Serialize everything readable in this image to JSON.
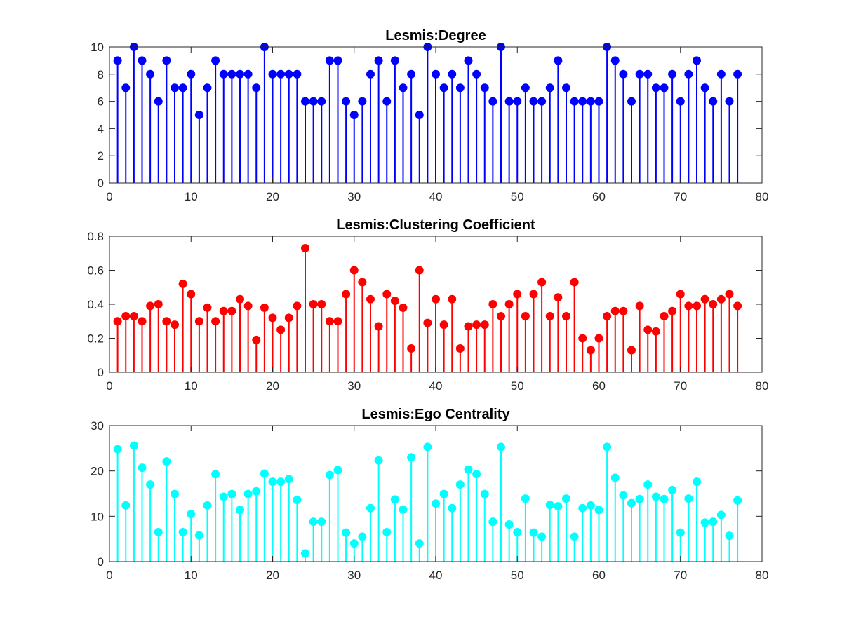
{
  "chart_data": [
    {
      "type": "stem",
      "title": "Lesmis:Degree",
      "xlabel": "",
      "ylabel": "",
      "xlim": [
        0,
        80
      ],
      "ylim": [
        0,
        10
      ],
      "xticks": [
        0,
        10,
        20,
        30,
        40,
        50,
        60,
        70,
        80
      ],
      "yticks": [
        0,
        2,
        4,
        6,
        8,
        10
      ],
      "color": "#0000ff",
      "grid": false,
      "x": [
        1,
        2,
        3,
        4,
        5,
        6,
        7,
        8,
        9,
        10,
        11,
        12,
        13,
        14,
        15,
        16,
        17,
        18,
        19,
        20,
        21,
        22,
        23,
        24,
        25,
        26,
        27,
        28,
        29,
        30,
        31,
        32,
        33,
        34,
        35,
        36,
        37,
        38,
        39,
        40,
        41,
        42,
        43,
        44,
        45,
        46,
        47,
        48,
        49,
        50,
        51,
        52,
        53,
        54,
        55,
        56,
        57,
        58,
        59,
        60,
        61,
        62,
        63,
        64,
        65,
        66,
        67,
        68,
        69,
        70,
        71,
        72,
        73,
        74,
        75,
        76,
        77
      ],
      "values": [
        9,
        7,
        10,
        9,
        8,
        6,
        9,
        7,
        7,
        8,
        5,
        7,
        9,
        8,
        8,
        8,
        8,
        7,
        10,
        8,
        8,
        8,
        8,
        6,
        6,
        6,
        9,
        9,
        6,
        5,
        6,
        8,
        9,
        6,
        9,
        7,
        8,
        5,
        10,
        8,
        7,
        8,
        7,
        9,
        8,
        7,
        6,
        10,
        6,
        6,
        7,
        6,
        6,
        7,
        9,
        7,
        6,
        6,
        6,
        6,
        10,
        9,
        8,
        6,
        8,
        8,
        7,
        7,
        8,
        6,
        8,
        9,
        7,
        6,
        8,
        6,
        8
      ]
    },
    {
      "type": "stem",
      "title": "Lesmis:Clustering Coefficient",
      "xlabel": "",
      "ylabel": "",
      "xlim": [
        0,
        80
      ],
      "ylim": [
        0,
        0.8
      ],
      "xticks": [
        0,
        10,
        20,
        30,
        40,
        50,
        60,
        70,
        80
      ],
      "yticks": [
        0,
        0.2,
        0.4,
        0.6,
        0.8
      ],
      "color": "#ff0000",
      "grid": false,
      "x": [
        1,
        2,
        3,
        4,
        5,
        6,
        7,
        8,
        9,
        10,
        11,
        12,
        13,
        14,
        15,
        16,
        17,
        18,
        19,
        20,
        21,
        22,
        23,
        24,
        25,
        26,
        27,
        28,
        29,
        30,
        31,
        32,
        33,
        34,
        35,
        36,
        37,
        38,
        39,
        40,
        41,
        42,
        43,
        44,
        45,
        46,
        47,
        48,
        49,
        50,
        51,
        52,
        53,
        54,
        55,
        56,
        57,
        58,
        59,
        60,
        61,
        62,
        63,
        64,
        65,
        66,
        67,
        68,
        69,
        70,
        71,
        72,
        73,
        74,
        75,
        76,
        77
      ],
      "values": [
        0.3,
        0.33,
        0.33,
        0.3,
        0.39,
        0.4,
        0.3,
        0.28,
        0.52,
        0.46,
        0.3,
        0.38,
        0.3,
        0.36,
        0.36,
        0.43,
        0.39,
        0.19,
        0.38,
        0.32,
        0.25,
        0.32,
        0.39,
        0.73,
        0.4,
        0.4,
        0.3,
        0.3,
        0.46,
        0.6,
        0.53,
        0.43,
        0.27,
        0.46,
        0.42,
        0.38,
        0.14,
        0.6,
        0.29,
        0.43,
        0.28,
        0.43,
        0.14,
        0.27,
        0.28,
        0.28,
        0.4,
        0.33,
        0.4,
        0.46,
        0.33,
        0.46,
        0.53,
        0.33,
        0.44,
        0.33,
        0.53,
        0.2,
        0.13,
        0.2,
        0.33,
        0.36,
        0.36,
        0.13,
        0.39,
        0.25,
        0.24,
        0.33,
        0.36,
        0.46,
        0.39,
        0.39,
        0.43,
        0.4,
        0.43,
        0.46,
        0.39
      ]
    },
    {
      "type": "stem",
      "title": "Lesmis:Ego Centrality",
      "xlabel": "",
      "ylabel": "",
      "xlim": [
        0,
        80
      ],
      "ylim": [
        0,
        30
      ],
      "xticks": [
        0,
        10,
        20,
        30,
        40,
        50,
        60,
        70,
        80
      ],
      "yticks": [
        0,
        10,
        20,
        30
      ],
      "color": "#00ffff",
      "grid": false,
      "x": [
        1,
        2,
        3,
        4,
        5,
        6,
        7,
        8,
        9,
        10,
        11,
        12,
        13,
        14,
        15,
        16,
        17,
        18,
        19,
        20,
        21,
        22,
        23,
        24,
        25,
        26,
        27,
        28,
        29,
        30,
        31,
        32,
        33,
        34,
        35,
        36,
        37,
        38,
        39,
        40,
        41,
        42,
        43,
        44,
        45,
        46,
        47,
        48,
        49,
        50,
        51,
        52,
        53,
        54,
        55,
        56,
        57,
        58,
        59,
        60,
        61,
        62,
        63,
        64,
        65,
        66,
        67,
        68,
        69,
        70,
        71,
        72,
        73,
        74,
        75,
        76,
        77
      ],
      "values": [
        24.8,
        12.4,
        25.6,
        20.7,
        17.0,
        6.5,
        22.1,
        14.9,
        6.5,
        10.5,
        5.8,
        12.4,
        19.3,
        14.3,
        14.9,
        11.4,
        14.9,
        15.5,
        19.4,
        17.6,
        17.6,
        18.2,
        13.6,
        1.8,
        8.8,
        8.8,
        19.1,
        20.2,
        6.4,
        4.0,
        5.5,
        11.8,
        22.3,
        6.5,
        13.7,
        11.5,
        23.0,
        4.0,
        25.3,
        12.8,
        14.9,
        11.8,
        17.0,
        20.3,
        19.3,
        14.9,
        8.8,
        25.3,
        8.2,
        6.5,
        13.9,
        6.4,
        5.5,
        12.5,
        12.2,
        13.9,
        5.5,
        11.8,
        12.4,
        11.4,
        25.3,
        18.5,
        14.6,
        12.9,
        13.8,
        17.0,
        14.3,
        13.8,
        15.8,
        6.4,
        13.9,
        17.6,
        8.6,
        8.8,
        10.3,
        5.7,
        13.5
      ]
    }
  ]
}
